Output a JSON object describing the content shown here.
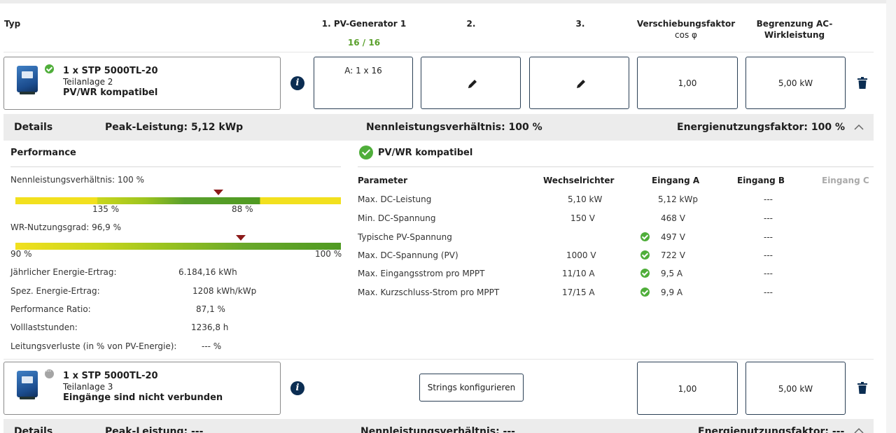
{
  "header": {
    "col_typ": "Typ",
    "col_pv1": "1. PV-Generator 1",
    "col_pv1_count": "16 / 16",
    "col_pv2": "2.",
    "col_pv3": "3.",
    "col_shift_line1": "Verschiebungsfaktor",
    "col_shift_line2": "cos φ",
    "col_ac_line1": "Begrenzung AC-",
    "col_ac_line2": "Wirkleistung"
  },
  "inverter1": {
    "name": "1 x STP 5000TL-20",
    "sub": "Teilanlage 2",
    "status": "PV/WR kompatibel",
    "info_icon": "i",
    "string_a": "A: 1 x 16",
    "cos_phi": "1,00",
    "ac_limit": "5,00 kW"
  },
  "details1": {
    "label": "Details",
    "peak": "Peak-Leistung: 5,12 kWp",
    "ratio": "Nennleistungsverhältnis: 100 %",
    "usage": "Energienutzungsfaktor: 100 %"
  },
  "performance": {
    "title": "Performance",
    "ratio_label": "Nennleistungsverhältnis: 100 %",
    "ratio_bar_left": "135 %",
    "ratio_bar_right": "88 %",
    "ratio_marker_fraction": 0.6,
    "efficiency_label": "WR-Nutzungsgrad: 96,9 %",
    "eff_bar_left": "90 %",
    "eff_bar_right": "100 %",
    "eff_marker_fraction": 0.69,
    "rows": [
      {
        "label": "Jährlicher Energie-Ertrag:",
        "value": "6.184,16 kWh"
      },
      {
        "label": "Spez. Energie-Ertrag:",
        "value": "1208 kWh/kWp"
      },
      {
        "label": "Performance Ratio:",
        "value": "87,1 %"
      },
      {
        "label": "Volllaststunden:",
        "value": "1236,8 h"
      },
      {
        "label": "Leitungsverluste (in % von PV-Energie):",
        "value": "--- %"
      }
    ]
  },
  "compat": {
    "title": "PV/WR kompatibel",
    "headers": [
      "Parameter",
      "Wechselrichter",
      "Eingang A",
      "Eingang B",
      "Eingang C"
    ],
    "rows": [
      {
        "param": "Max. DC-Leistung",
        "inv": "5,10 kW",
        "a": "5,12 kWp",
        "a_ok": false,
        "b": "---"
      },
      {
        "param": "Min. DC-Spannung",
        "inv": "150 V",
        "a": "468 V",
        "a_ok": false,
        "b": "---"
      },
      {
        "param": "Typische PV-Spannung",
        "inv": "",
        "a": "497 V",
        "a_ok": true,
        "b": "---"
      },
      {
        "param": "Max. DC-Spannung (PV)",
        "inv": "1000 V",
        "a": "722 V",
        "a_ok": true,
        "b": "---"
      },
      {
        "param": "Max. Eingangsstrom pro MPPT",
        "inv": "11/10 A",
        "a": "9,5 A",
        "a_ok": true,
        "b": "---"
      },
      {
        "param": "Max. Kurzschluss-Strom pro MPPT",
        "inv": "17/15 A",
        "a": "9,9 A",
        "a_ok": true,
        "b": "---"
      }
    ]
  },
  "inverter2": {
    "name": "1 x STP 5000TL-20",
    "sub": "Teilanlage 3",
    "status": "Eingänge sind nicht verbunden",
    "info_icon": "i",
    "configure_button": "Strings konfigurieren",
    "cos_phi": "1,00",
    "ac_limit": "5,00 kW"
  },
  "details2": {
    "label": "Details",
    "peak": "Peak-Leistung: ---",
    "ratio": "Nennleistungsverhältnis: ---",
    "usage": "Energienutzungsfaktor: ---"
  },
  "colors": {
    "accent_green": "#5aa02c",
    "navy": "#0b2d52",
    "marker_red": "#8c1a1a",
    "bar_yellow": "#f2e01e"
  },
  "icons": [
    "inverter-image",
    "check-icon",
    "pending-icon",
    "info-icon",
    "pencil-icon",
    "trash-icon",
    "chevron-up-icon"
  ]
}
